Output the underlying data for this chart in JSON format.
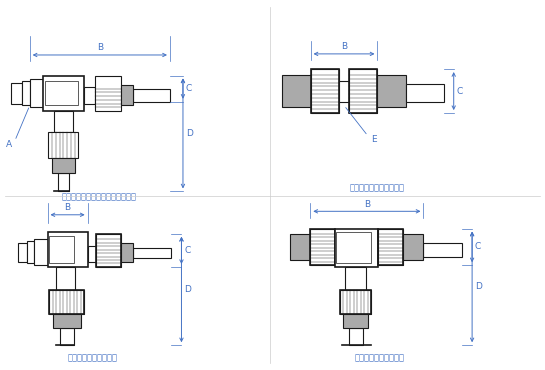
{
  "bg_color": "#ffffff",
  "line_color": "#1a1a1a",
  "dim_color": "#4472c4",
  "gray_fill": "#aaaaaa",
  "light_gray": "#cccccc",
  "white_fill": "#ffffff",
  "label_color": "#4472c4",
  "lw_thick": 1.2,
  "lw_med": 0.8,
  "lw_thin": 0.5,
  "labels": {
    "STL": "ＳＴＬ：スタッドチーズ（Ｌ型）",
    "EU": "ＥＵ：イコールユニオン",
    "EL": "ＥＬ：イコールエルボ",
    "ET": "ＥＴ：イコールチーズ"
  }
}
